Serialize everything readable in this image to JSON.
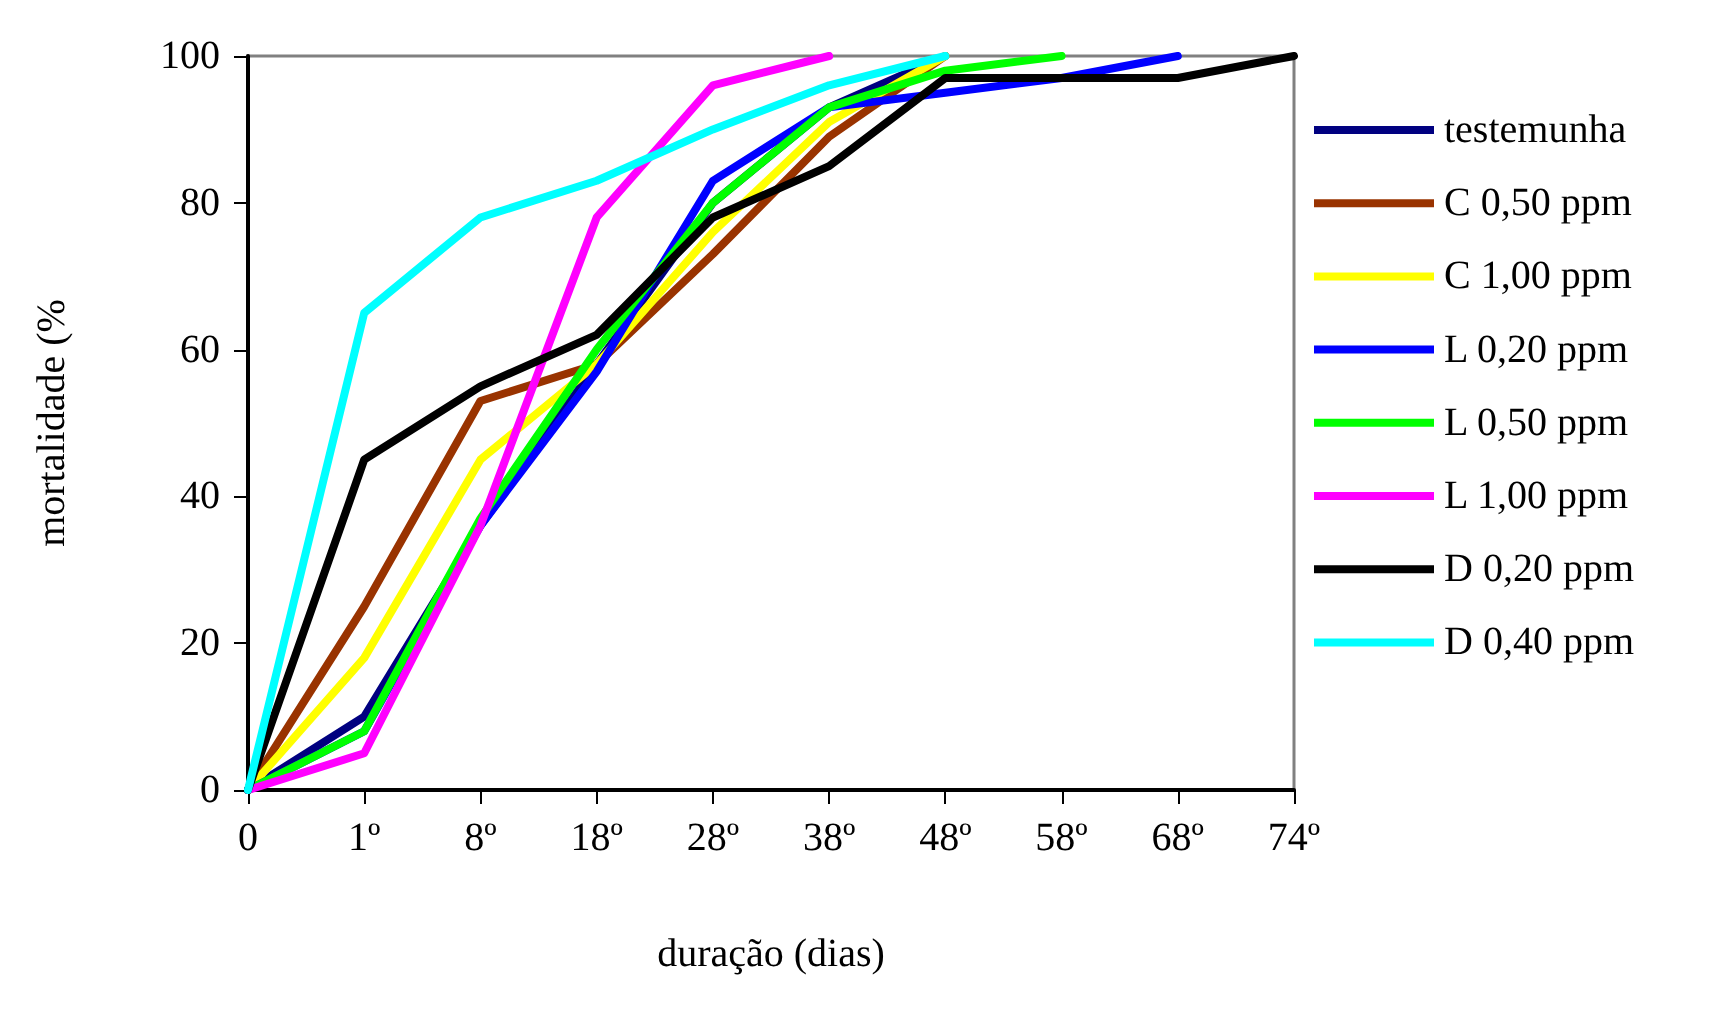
{
  "chart_data": {
    "type": "line",
    "xlabel": "duração (dias)",
    "ylabel": "mortalidade (%",
    "categories": [
      "0",
      "1º",
      "8º",
      "18º",
      "28º",
      "38º",
      "48º",
      "58º",
      "68º",
      "74º"
    ],
    "ylim": [
      0,
      100
    ],
    "yticks": [
      0,
      20,
      40,
      60,
      80,
      100
    ],
    "grid": false,
    "legend": "right",
    "marker": "none",
    "line_style": "solid",
    "series": [
      {
        "name": "testemunha",
        "color": "#000080",
        "values": [
          0,
          10,
          36,
          58,
          80,
          93,
          100,
          null,
          null,
          null
        ]
      },
      {
        "name": "C 0,50 ppm",
        "color": "#993300",
        "values": [
          0,
          25,
          53,
          58,
          73,
          89,
          100,
          null,
          null,
          null
        ]
      },
      {
        "name": "C 1,00 ppm",
        "color": "#ffff00",
        "values": [
          0,
          18,
          45,
          58,
          76,
          91,
          100,
          null,
          null,
          null
        ]
      },
      {
        "name": "L 0,20 ppm",
        "color": "#0000ff",
        "values": [
          0,
          8,
          36,
          57,
          83,
          93,
          95,
          97,
          100,
          null
        ]
      },
      {
        "name": "L 0,50 ppm",
        "color": "#00ff00",
        "values": [
          0,
          8,
          37,
          60,
          80,
          93,
          98,
          100,
          null,
          null
        ]
      },
      {
        "name": "L 1,00 ppm",
        "color": "#ff00ff",
        "values": [
          0,
          5,
          36,
          78,
          96,
          100,
          null,
          null,
          null,
          null
        ]
      },
      {
        "name": "D 0,20 ppm",
        "color": "#000000",
        "values": [
          0,
          45,
          55,
          62,
          78,
          85,
          97,
          97,
          97,
          100
        ]
      },
      {
        "name": "D 0,40 ppm",
        "color": "#00ffff",
        "values": [
          0,
          65,
          78,
          83,
          90,
          96,
          100,
          null,
          null,
          null
        ]
      }
    ]
  }
}
